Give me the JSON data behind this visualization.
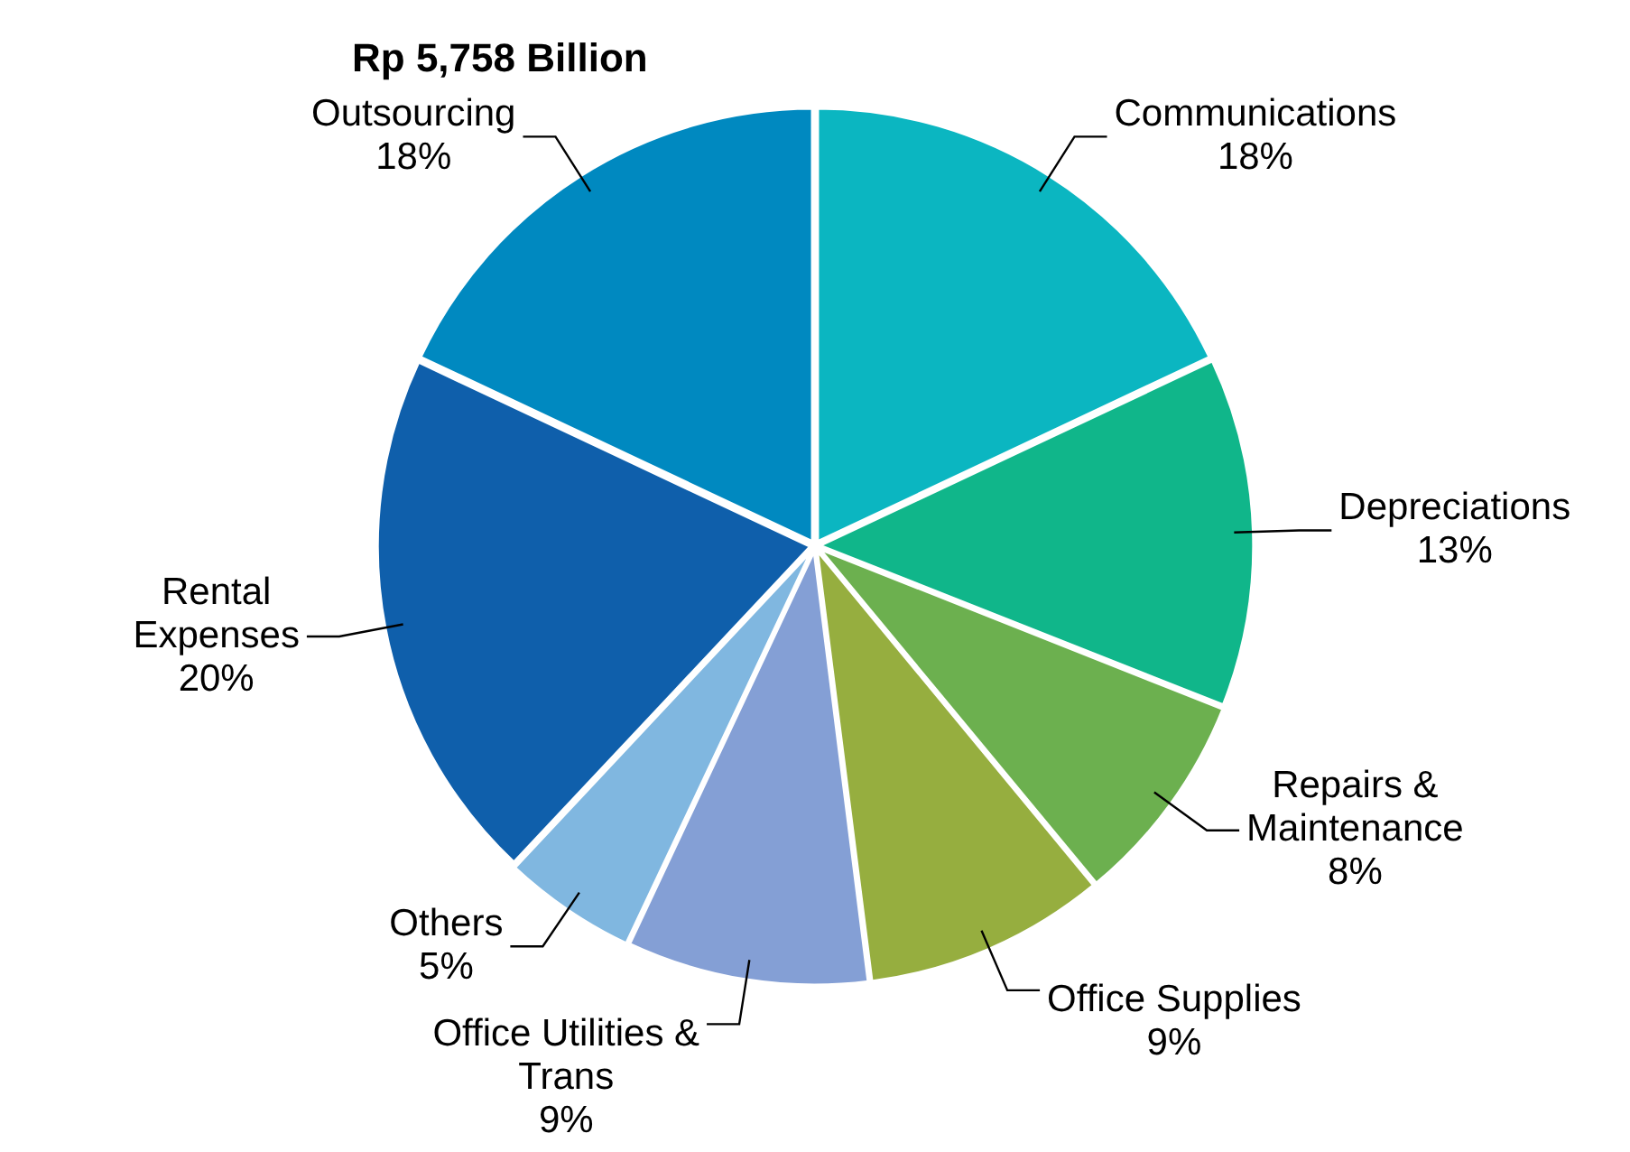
{
  "chart_data": {
    "type": "pie",
    "title": "Rp 5,758 Billion",
    "categories": [
      "Communications",
      "Depreciations",
      "Repairs & Maintenance",
      "Office Supplies",
      "Office Utilities & Trans",
      "Others",
      "Rental Expenses",
      "Outsourcing"
    ],
    "values": [
      18,
      13,
      8,
      9,
      9,
      5,
      20,
      18
    ],
    "value_labels": [
      "18%",
      "13%",
      "8%",
      "9%",
      "9%",
      "5%",
      "20%",
      "18%"
    ],
    "colors": [
      "#0bb6c1",
      "#10b68a",
      "#6cb04f",
      "#96ae3f",
      "#849fd5",
      "#80b7e0",
      "#0f5fab",
      "#0089c0"
    ],
    "legend": false
  }
}
